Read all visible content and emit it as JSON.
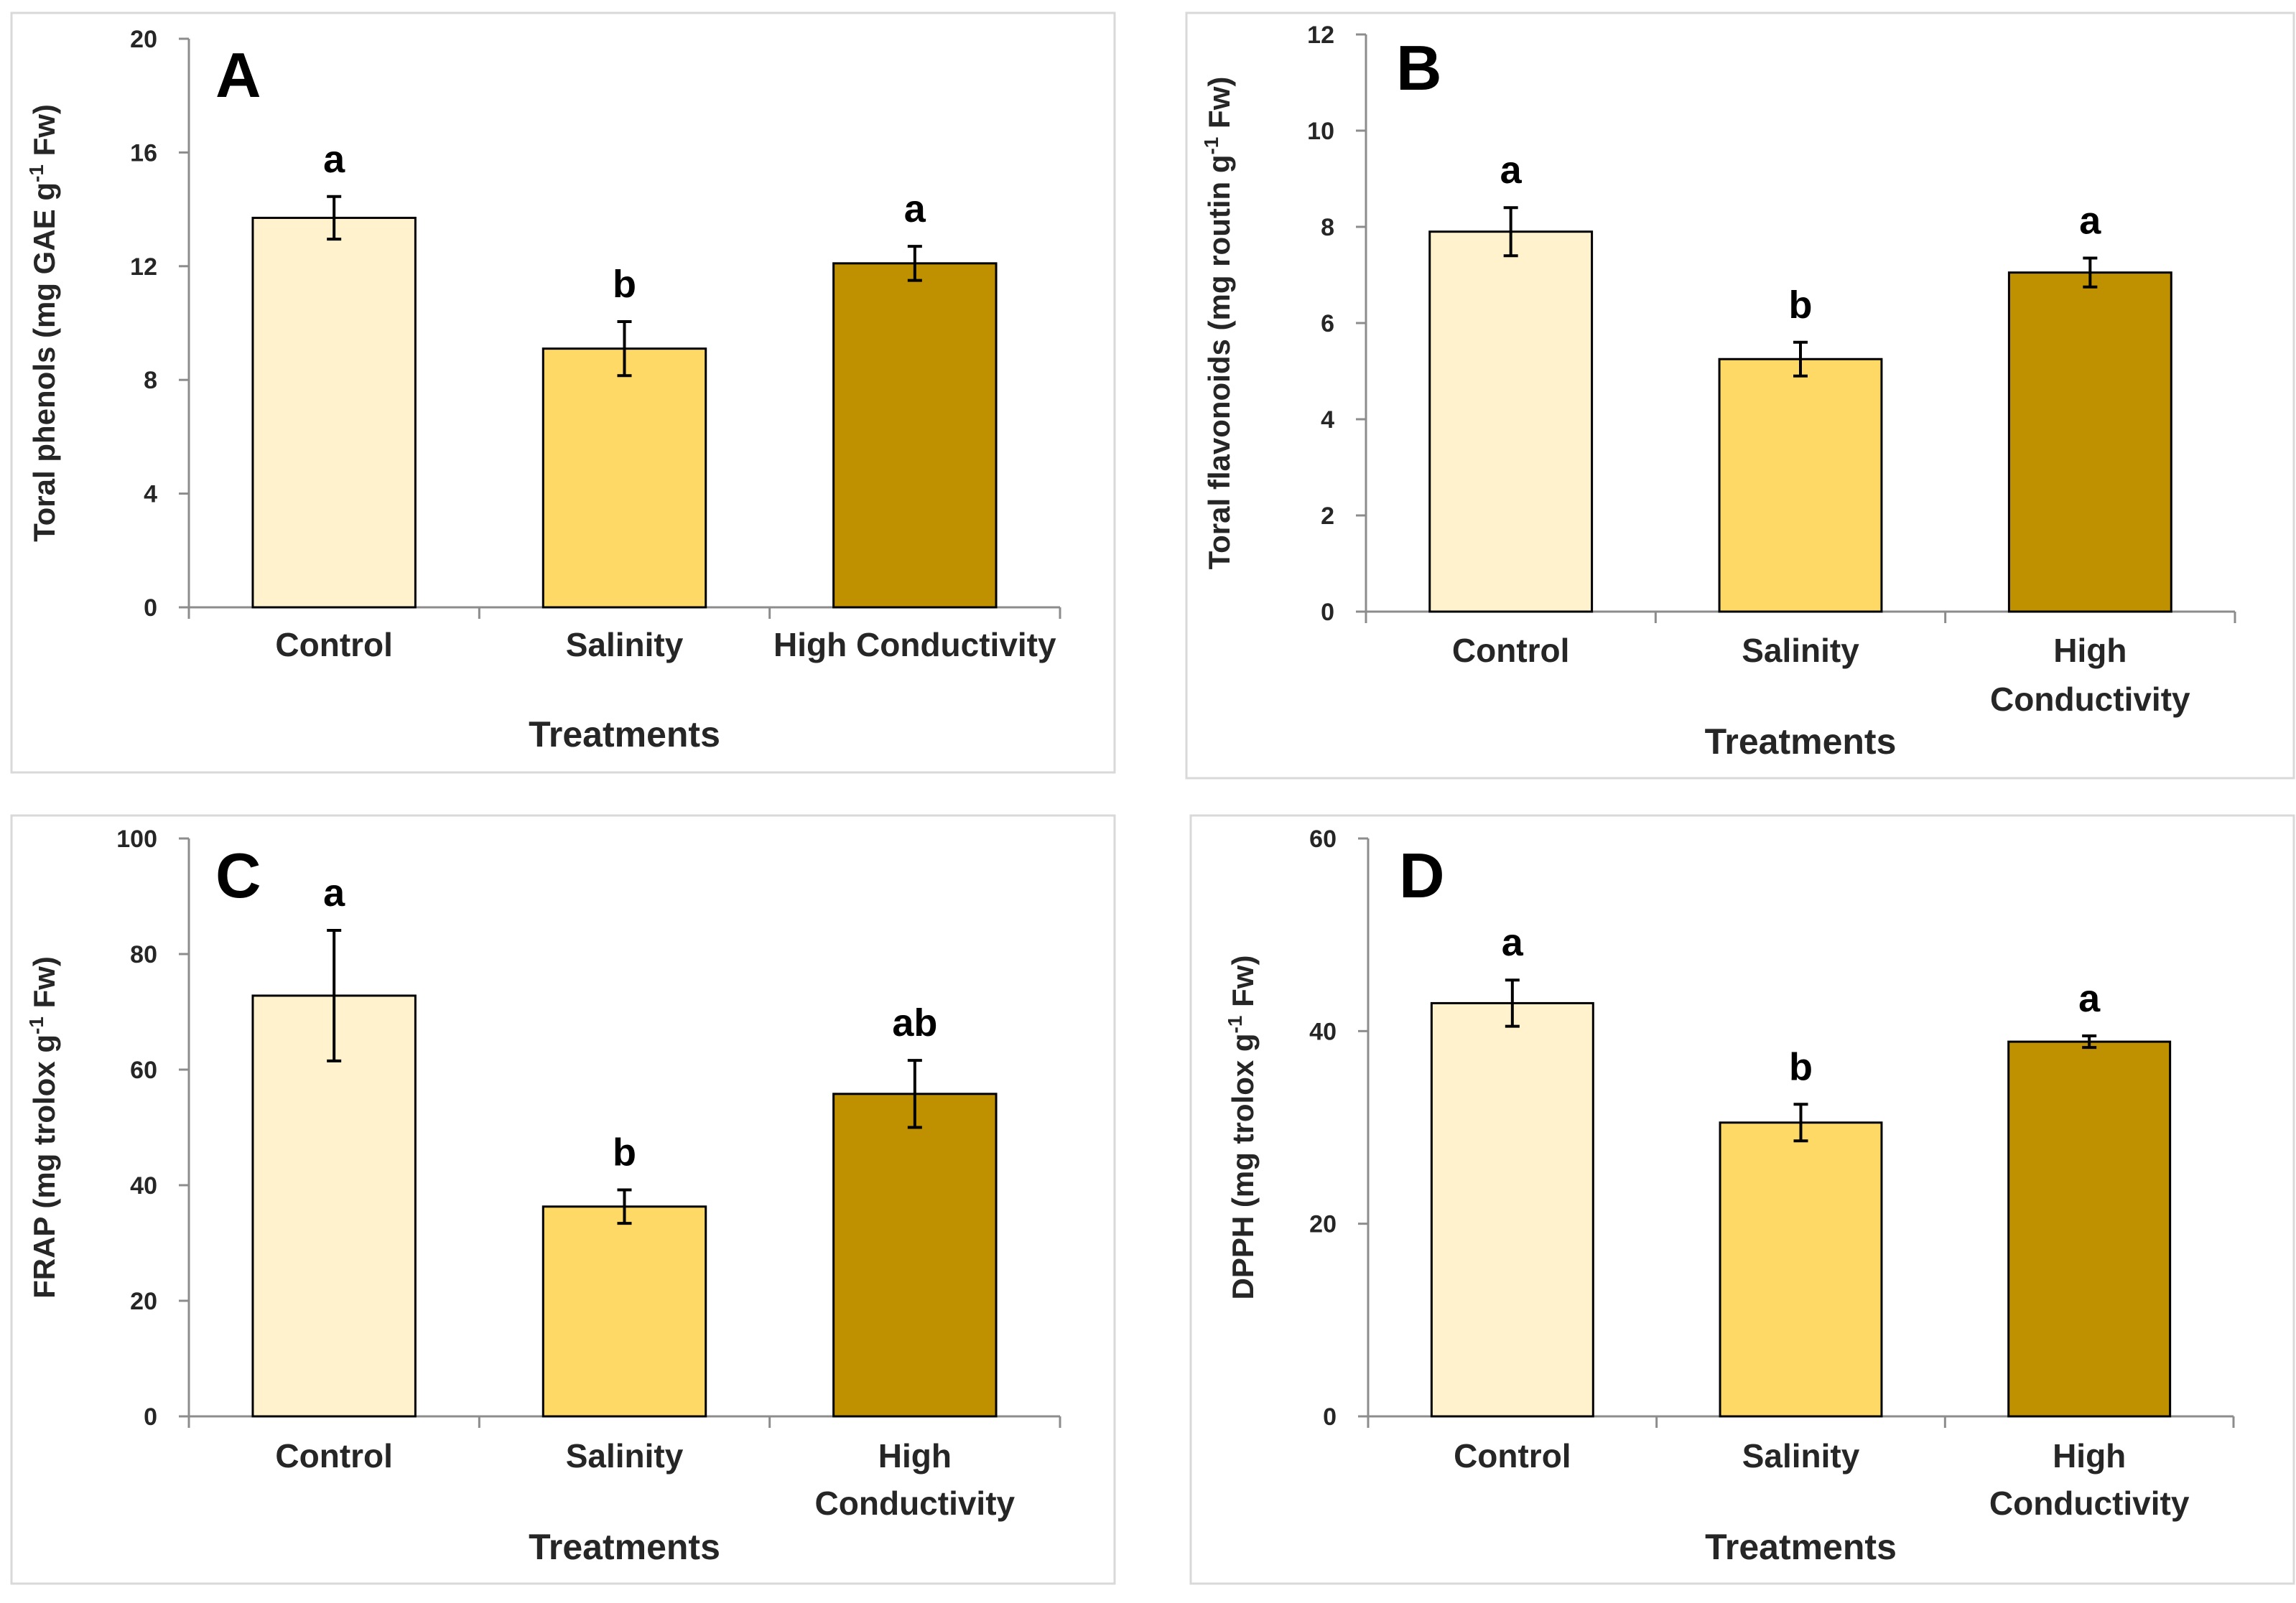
{
  "chart_data": [
    {
      "type": "bar",
      "panel_label": "A",
      "categories": [
        "Control",
        "Salinity",
        "High Conductivity"
      ],
      "values": [
        13.7,
        9.1,
        12.1
      ],
      "errors": [
        0.75,
        0.95,
        0.6
      ],
      "significance": [
        "a",
        "b",
        "a"
      ],
      "colors": [
        "#FFF2CC",
        "#FFD966",
        "#BF9000"
      ],
      "xlabel": "Treatments",
      "ylabel": "Toral phenols (mg GAE g-1 Fw)",
      "ylabel_parts": {
        "before": "Toral phenols (mg GAE g",
        "sup": "-1",
        "after": " Fw)"
      },
      "ylim": [
        0,
        20
      ],
      "yticks": [
        "0",
        "4",
        "8",
        "12",
        "16",
        "20"
      ]
    },
    {
      "type": "bar",
      "panel_label": "B",
      "categories": [
        "Control",
        "Salinity",
        "High Conductivity"
      ],
      "values": [
        7.9,
        5.25,
        7.05
      ],
      "errors": [
        0.5,
        0.35,
        0.3
      ],
      "significance": [
        "a",
        "b",
        "a"
      ],
      "colors": [
        "#FFF2CC",
        "#FFD966",
        "#BF9000"
      ],
      "xlabel": "Treatments",
      "ylabel": "Toral flavonoids (mg routin g-1 Fw)",
      "ylabel_parts": {
        "before": "Toral flavonoids (mg routin g",
        "sup": "-1",
        "after": " Fw)"
      },
      "ylim": [
        0,
        12
      ],
      "yticks": [
        "0",
        "2",
        "4",
        "6",
        "8",
        "10",
        "12"
      ]
    },
    {
      "type": "bar",
      "panel_label": "C",
      "categories": [
        "Control",
        "Salinity",
        "High Conductivity"
      ],
      "values": [
        72.8,
        36.3,
        55.8
      ],
      "errors": [
        11.3,
        2.9,
        5.8
      ],
      "significance": [
        "a",
        "b",
        "ab"
      ],
      "colors": [
        "#FFF2CC",
        "#FFD966",
        "#BF9000"
      ],
      "xlabel": "Treatments",
      "ylabel": "FRAP (mg trolox g-1 Fw)",
      "ylabel_parts": {
        "before": "FRAP (mg trolox g",
        "sup": "-1",
        "after": " Fw)"
      },
      "ylim": [
        0,
        100
      ],
      "yticks": [
        "0",
        "20",
        "40",
        "60",
        "80",
        "100"
      ]
    },
    {
      "type": "bar",
      "panel_label": "D",
      "categories": [
        "Control",
        "Salinity",
        "High Conductivity"
      ],
      "values": [
        42.9,
        30.5,
        38.9
      ],
      "errors": [
        2.4,
        1.9,
        0.6
      ],
      "significance": [
        "a",
        "b",
        "a"
      ],
      "colors": [
        "#FFF2CC",
        "#FFD966",
        "#BF9000"
      ],
      "xlabel": "Treatments",
      "ylabel": "DPPH (mg trolox g-1 Fw)",
      "ylabel_parts": {
        "before": "DPPH (mg trolox g",
        "sup": "-1",
        "after": " Fw)"
      },
      "ylim": [
        0,
        60
      ],
      "yticks": [
        "0",
        "20",
        "40",
        "60"
      ]
    }
  ]
}
